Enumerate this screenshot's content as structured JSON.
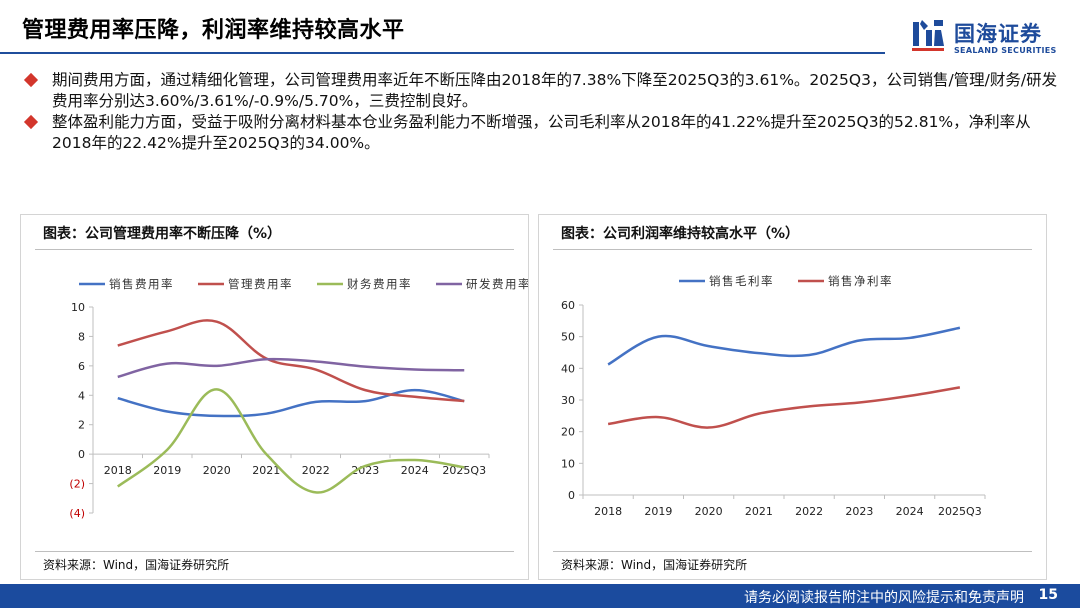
{
  "header": {
    "title": "管理费用率压降，利润率维持较高水平",
    "logo_cn": "国海证券",
    "logo_en": "SEALAND SECURITIES"
  },
  "bullets": [
    "期间费用方面，通过精细化管理，公司管理费用率近年不断压降由2018年的7.38%下降至2025Q3的3.61%。2025Q3，公司销售/管理/财务/研发费用率分别达3.60%/3.61%/-0.9%/5.70%，三费控制良好。",
    "整体盈利能力方面，受益于吸附分离材料基本仓业务盈利能力不断增强，公司毛利率从2018年的41.22%提升至2025Q3的52.81%，净利率从2018年的22.42%提升至2025Q3的34.00%。"
  ],
  "left_panel": {
    "title": "图表：公司管理费用率不断压降（%）",
    "source": "资料来源：Wind，国海证券研究所"
  },
  "right_panel": {
    "title": "图表：公司利润率维持较高水平（%）",
    "source": "资料来源：Wind，国海证券研究所"
  },
  "footer": {
    "disclaimer": "请务必阅读报告附注中的风险提示和免责声明",
    "page": "15"
  },
  "chart_data": [
    {
      "type": "line",
      "categories": [
        "2018",
        "2019",
        "2020",
        "2021",
        "2022",
        "2023",
        "2024",
        "2025Q3"
      ],
      "ylim": [
        -4,
        10
      ],
      "yticks": [
        -4,
        -2,
        0,
        2,
        4,
        6,
        8,
        10
      ],
      "ytick_labels": [
        "(4)",
        "(2)",
        "0",
        "2",
        "4",
        "6",
        "8",
        "10"
      ],
      "series": [
        {
          "name": "销售费用率",
          "color": "#4472c4",
          "values": [
            3.8,
            2.9,
            2.6,
            2.75,
            3.55,
            3.6,
            4.35,
            3.6
          ]
        },
        {
          "name": "管理费用率",
          "color": "#c0504d",
          "values": [
            7.38,
            8.35,
            9.0,
            6.5,
            5.75,
            4.35,
            3.9,
            3.61
          ]
        },
        {
          "name": "财务费用率",
          "color": "#9bbb59",
          "values": [
            -2.2,
            0.3,
            4.4,
            0.0,
            -2.6,
            -0.8,
            -0.4,
            -0.9
          ]
        },
        {
          "name": "研发费用率",
          "color": "#8064a2",
          "values": [
            5.25,
            6.15,
            6.0,
            6.45,
            6.3,
            5.95,
            5.75,
            5.7
          ]
        }
      ]
    },
    {
      "type": "line",
      "categories": [
        "2018",
        "2019",
        "2020",
        "2021",
        "2022",
        "2023",
        "2024",
        "2025Q3"
      ],
      "ylim": [
        0,
        60
      ],
      "yticks": [
        0,
        10,
        20,
        30,
        40,
        50,
        60
      ],
      "ytick_labels": [
        "0",
        "10",
        "20",
        "30",
        "40",
        "50",
        "60"
      ],
      "series": [
        {
          "name": "销售毛利率",
          "color": "#4472c4",
          "values": [
            41.22,
            50.0,
            47.0,
            44.8,
            44.2,
            48.8,
            49.6,
            52.81
          ]
        },
        {
          "name": "销售净利率",
          "color": "#c0504d",
          "values": [
            22.42,
            24.6,
            21.3,
            25.7,
            28.0,
            29.2,
            31.3,
            34.0
          ]
        }
      ]
    }
  ]
}
